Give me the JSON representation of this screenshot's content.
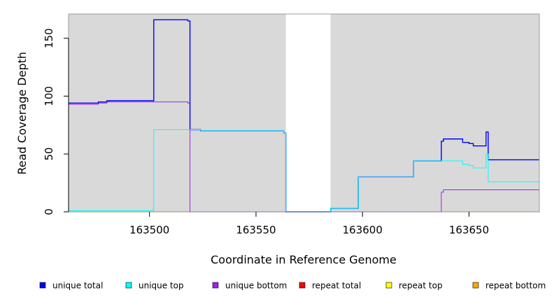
{
  "chart_data": {
    "type": "line",
    "title": "",
    "xlabel": "Coordinate in Reference Genome",
    "ylabel": "Read Coverage Depth",
    "xlim": [
      163462,
      163683
    ],
    "ylim": [
      0,
      171
    ],
    "x_ticks": [
      163500,
      163550,
      163600,
      163650
    ],
    "y_ticks": [
      0,
      50,
      100,
      150
    ],
    "x_tick_labels": [
      "163500",
      "163550",
      "163600",
      "163650"
    ],
    "y_tick_labels": [
      "0",
      "50",
      "100",
      "150"
    ],
    "background_color": "#d9d9d9",
    "grid": false,
    "legend_position": "bottom",
    "shaded_regions": [
      {
        "x": [
          163462,
          163564
        ]
      },
      {
        "x": [
          163585,
          163683
        ]
      }
    ],
    "series": [
      {
        "name": "unique total",
        "color": "#0000ff",
        "points": [
          [
            163462,
            94
          ],
          [
            163476,
            94
          ],
          [
            163476,
            95
          ],
          [
            163480,
            95
          ],
          [
            163480,
            96
          ],
          [
            163502,
            96
          ],
          [
            163502,
            166
          ],
          [
            163518,
            166
          ],
          [
            163518,
            165
          ],
          [
            163519,
            165
          ],
          [
            163519,
            71
          ],
          [
            163524,
            71
          ],
          [
            163524,
            70
          ],
          [
            163563,
            70
          ],
          [
            163563,
            68
          ],
          [
            163564,
            68
          ],
          [
            163564,
            67
          ],
          [
            163564,
            0
          ],
          [
            163585,
            0
          ],
          [
            163585,
            3
          ],
          [
            163598,
            3
          ],
          [
            163598,
            30
          ],
          [
            163624,
            30
          ],
          [
            163624,
            44
          ],
          [
            163637,
            44
          ],
          [
            163637,
            61
          ],
          [
            163638,
            61
          ],
          [
            163638,
            63
          ],
          [
            163647,
            63
          ],
          [
            163647,
            60
          ],
          [
            163650,
            60
          ],
          [
            163650,
            59
          ],
          [
            163652,
            59
          ],
          [
            163652,
            57
          ],
          [
            163658,
            57
          ],
          [
            163658,
            69
          ],
          [
            163659,
            69
          ],
          [
            163659,
            45
          ],
          [
            163683,
            45
          ]
        ]
      },
      {
        "name": "unique top",
        "color": "#00ffff",
        "points": [
          [
            163462,
            1
          ],
          [
            163502,
            1
          ],
          [
            163502,
            71
          ],
          [
            163524,
            71
          ],
          [
            163524,
            70
          ],
          [
            163563,
            70
          ],
          [
            163563,
            68
          ],
          [
            163564,
            68
          ],
          [
            163564,
            67
          ],
          [
            163564,
            0
          ],
          [
            163585,
            0
          ],
          [
            163585,
            3
          ],
          [
            163598,
            3
          ],
          [
            163598,
            30
          ],
          [
            163624,
            30
          ],
          [
            163624,
            44
          ],
          [
            163647,
            44
          ],
          [
            163647,
            41
          ],
          [
            163650,
            41
          ],
          [
            163650,
            40
          ],
          [
            163652,
            40
          ],
          [
            163652,
            38
          ],
          [
            163658,
            38
          ],
          [
            163658,
            50
          ],
          [
            163659,
            50
          ],
          [
            163659,
            26
          ],
          [
            163683,
            26
          ]
        ]
      },
      {
        "name": "unique bottom",
        "color": "#a020f0",
        "points": [
          [
            163462,
            93
          ],
          [
            163476,
            93
          ],
          [
            163476,
            94
          ],
          [
            163480,
            94
          ],
          [
            163480,
            95
          ],
          [
            163518,
            95
          ],
          [
            163518,
            94
          ],
          [
            163519,
            94
          ],
          [
            163519,
            0
          ],
          [
            163637,
            0
          ],
          [
            163637,
            17
          ],
          [
            163638,
            17
          ],
          [
            163638,
            19
          ],
          [
            163683,
            19
          ]
        ]
      },
      {
        "name": "repeat total",
        "color": "#ff0000",
        "points": [
          [
            163462,
            0
          ],
          [
            163683,
            0
          ]
        ]
      },
      {
        "name": "repeat top",
        "color": "#ffff00",
        "points": [
          [
            163462,
            0
          ],
          [
            163683,
            0
          ]
        ]
      },
      {
        "name": "repeat bottom",
        "color": "#ffa500",
        "points": [
          [
            163462,
            0
          ],
          [
            163683,
            0
          ]
        ]
      }
    ]
  }
}
